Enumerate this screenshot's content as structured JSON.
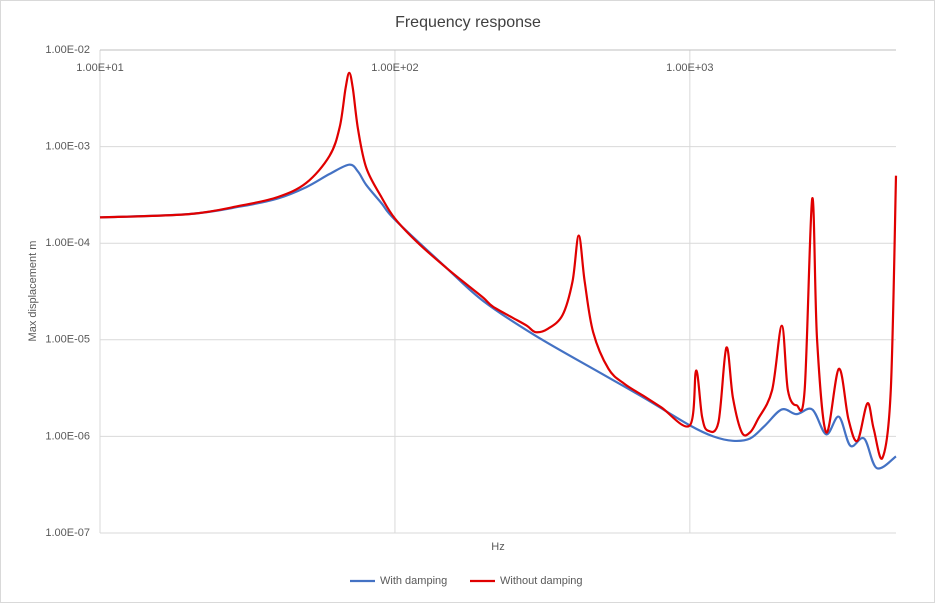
{
  "chart_data": {
    "type": "line",
    "title": "Frequency response",
    "x_label": "Hz",
    "y_label": "Max displacement m",
    "xscale": "log",
    "yscale": "log",
    "grid": true,
    "legend": "bottom",
    "xlim": [
      10,
      5000
    ],
    "ylim": [
      1e-07,
      0.01
    ],
    "xticks": [
      {
        "value": 10,
        "label": "1.00E+01"
      },
      {
        "value": 100,
        "label": "1.00E+02"
      },
      {
        "value": 1000,
        "label": "1.00E+03"
      }
    ],
    "yticks": [
      {
        "value": 0.01,
        "label": "1.00E-02"
      },
      {
        "value": 0.001,
        "label": "1.00E-03"
      },
      {
        "value": 0.0001,
        "label": "1.00E-04"
      },
      {
        "value": 1e-05,
        "label": "1.00E-05"
      },
      {
        "value": 1e-06,
        "label": "1.00E-06"
      },
      {
        "value": 1e-07,
        "label": "1.00E-07"
      }
    ],
    "series": [
      {
        "name": "With damping",
        "color": "#4472c4",
        "x": [
          10,
          20,
          30,
          40,
          50,
          60,
          70,
          75,
          80,
          90,
          100,
          150,
          200,
          300,
          500,
          700,
          1000,
          1200,
          1400,
          1600,
          1800,
          2050,
          2300,
          2600,
          2900,
          3200,
          3500,
          3900,
          4300,
          5000
        ],
        "values": [
          0.000185,
          0.0002,
          0.00024,
          0.00029,
          0.00038,
          0.00052,
          0.00065,
          0.00055,
          0.0004,
          0.00026,
          0.000175,
          5.5e-05,
          2.5e-05,
          1.1e-05,
          4.5e-06,
          2.5e-06,
          1.3e-06,
          1e-06,
          9e-07,
          9.5e-07,
          1.3e-06,
          1.9e-06,
          1.7e-06,
          1.9e-06,
          1.05e-06,
          1.6e-06,
          8e-07,
          9.5e-07,
          4.7e-07,
          6.2e-07
        ]
      },
      {
        "name": "Without damping",
        "color": "#e00000",
        "x": [
          10,
          20,
          30,
          40,
          50,
          60,
          65,
          68,
          70,
          72,
          75,
          80,
          90,
          100,
          120,
          150,
          180,
          200,
          215,
          250,
          280,
          300,
          330,
          370,
          400,
          420,
          440,
          470,
          530,
          600,
          700,
          800,
          1000,
          1050,
          1100,
          1150,
          1250,
          1330,
          1400,
          1500,
          1600,
          1700,
          1900,
          2050,
          2150,
          2300,
          2450,
          2600,
          2700,
          2900,
          3200,
          3450,
          3700,
          4000,
          4200,
          4500,
          4800,
          5000
        ],
        "values": [
          0.000185,
          0.0002,
          0.000245,
          0.0003,
          0.00042,
          0.0008,
          0.0016,
          0.004,
          0.0058,
          0.004,
          0.0015,
          0.0006,
          0.0003,
          0.00018,
          0.0001,
          5.5e-05,
          3.5e-05,
          2.7e-05,
          2.2e-05,
          1.7e-05,
          1.4e-05,
          1.2e-05,
          1.3e-05,
          1.8e-05,
          4e-05,
          0.00012,
          4e-05,
          1.2e-05,
          5e-06,
          3.5e-06,
          2.6e-06,
          2e-06,
          1.3e-06,
          4.8e-06,
          1.6e-06,
          1.15e-06,
          1.4e-06,
          8.3e-06,
          2.5e-06,
          1.1e-06,
          1.1e-06,
          1.5e-06,
          3e-06,
          1.4e-05,
          3e-06,
          2.1e-06,
          3e-06,
          0.00029,
          1e-05,
          1.1e-06,
          5e-06,
          1.5e-06,
          9e-07,
          2.2e-06,
          1.2e-06,
          6e-07,
          3e-06,
          0.0005
        ]
      }
    ]
  }
}
